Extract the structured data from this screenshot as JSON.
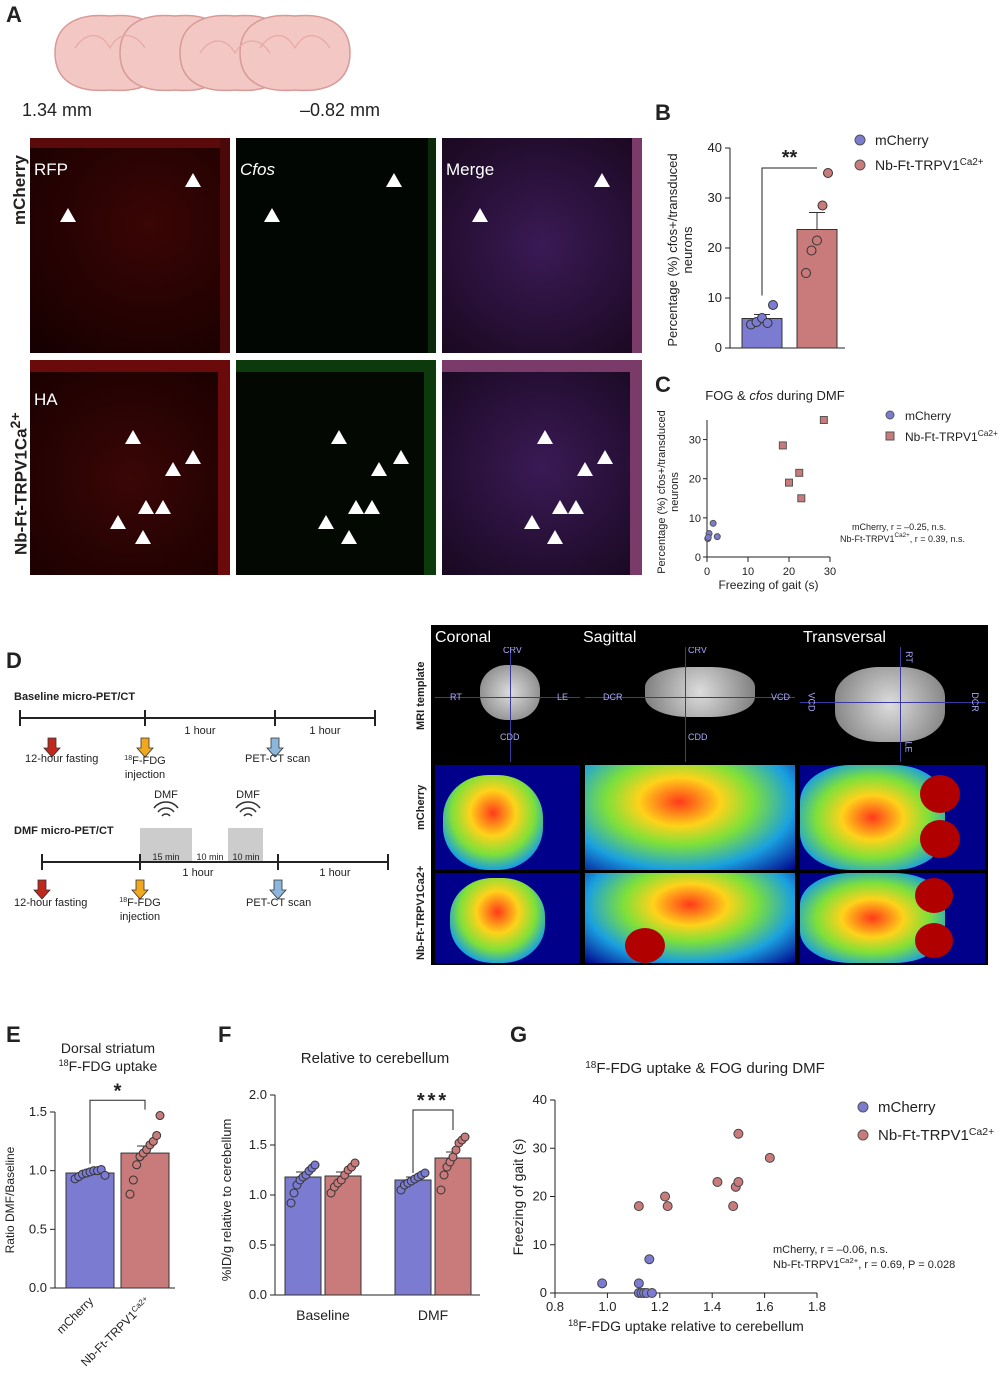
{
  "panel_labels": {
    "a": "A",
    "b": "B",
    "c": "C",
    "d": "D",
    "e": "E",
    "f": "F",
    "g": "G"
  },
  "panel_a": {
    "pos_left": "1.34 mm",
    "pos_right": "–0.82 mm",
    "row_labels": [
      "mCherry",
      "Nb-Ft-TRPV1Ca2+"
    ],
    "row_label_main": "Nb-Ft-TRPV1Ca",
    "row_label_sup": "2+",
    "col_labels": [
      "RFP",
      "Cfos",
      "Merge"
    ],
    "row2_first_label": "HA"
  },
  "legend": {
    "mcherry": "mCherry",
    "trpv1_main": "Nb-Ft-TRPV1",
    "trpv1_sup": "Ca2+",
    "color_mcherry": "#7b7bd1",
    "color_trpv1": "#c97b7b"
  },
  "panel_d": {
    "baseline_title": "Baseline micro-PET/CT",
    "dmf_title": "DMF micro-PET/CT",
    "fasting": "12-hour fasting",
    "injection_pre": "18",
    "injection_main": "F-FDG",
    "injection_line2": "injection",
    "scan": "PET-CT scan",
    "hour": "1 hour",
    "dmf": "DMF",
    "min15": "15 min",
    "min10": "10 min",
    "pet_cols": [
      "Coronal",
      "Sagittal",
      "Transversal"
    ],
    "pet_rows": [
      "MRI template",
      "mCherry",
      "Nb-Ft-TRPV1Ca2+"
    ],
    "orient": {
      "crv": "CRV",
      "cdd": "CDD",
      "rt": "RT",
      "le": "LE",
      "dcr": "DCR",
      "vcd": "VCD"
    }
  },
  "chart_data": [
    {
      "id": "B",
      "type": "bar",
      "categories": [
        "mCherry",
        "Nb-Ft-TRPV1Ca2+"
      ],
      "values": [
        5.9,
        23.7
      ],
      "errors": [
        0.8,
        3.4
      ],
      "points": [
        [
          4.7,
          5.2,
          6.0,
          5.0,
          8.6
        ],
        [
          15.0,
          19.5,
          21.5,
          28.5,
          35.0
        ]
      ],
      "ylabel": "Percentage (%) cfos+/transduced neurons",
      "ylabel_line1": "Percentage (%) cfos+/transduced",
      "ylabel_line2": "neurons",
      "ylim": [
        0,
        40
      ],
      "yticks": [
        "0",
        "10",
        "20",
        "30",
        "40"
      ],
      "significance": "**"
    },
    {
      "id": "C",
      "type": "scatter",
      "title": "FOG & cfos during DMF",
      "title_pre": "FOG & ",
      "title_it": "cfos",
      "title_post": " during DMF",
      "xlabel": "Freezing of gait (s)",
      "ylabel_line1": "Percentage (%) cfos+/transduced",
      "ylabel_line2": "neurons",
      "xlim": [
        0,
        30
      ],
      "ylim": [
        0,
        35
      ],
      "xticks": [
        "0",
        "10",
        "20",
        "30"
      ],
      "yticks": [
        "0",
        "10",
        "20",
        "30"
      ],
      "series": [
        {
          "name": "mCherry",
          "points": [
            [
              0.2,
              4.7
            ],
            [
              0.5,
              6.0
            ],
            [
              1.5,
              8.6
            ],
            [
              2.5,
              5.2
            ],
            [
              0.3,
              5.0
            ]
          ]
        },
        {
          "name": "Nb-Ft-TRPV1Ca2+",
          "points": [
            [
              18.5,
              28.5
            ],
            [
              20,
              19
            ],
            [
              22.5,
              21.5
            ],
            [
              23,
              15
            ],
            [
              28.5,
              35
            ]
          ]
        }
      ],
      "annot1": "mCherry, r = –0.25, n.s.",
      "annot2_pre": "Nb-Ft-TRPV1",
      "annot2_sup": "Ca2+",
      "annot2_post": ", r = 0.39, n.s."
    },
    {
      "id": "E",
      "type": "bar",
      "title_line1": "Dorsal striatum",
      "title_line2_sup": "18",
      "title_line2": "F-FDG uptake",
      "categories": [
        "mCherry",
        "Nb-Ft-TRPV1Ca2+"
      ],
      "values": [
        0.98,
        1.15
      ],
      "errors": [
        0.02,
        0.06
      ],
      "points": [
        [
          0.93,
          0.95,
          0.97,
          0.98,
          0.99,
          1.0,
          1.0,
          1.01,
          0.96
        ],
        [
          0.8,
          0.92,
          1.05,
          1.12,
          1.15,
          1.18,
          1.22,
          1.25,
          1.3,
          1.47
        ]
      ],
      "ylabel": "Ratio DMF/Baseline",
      "ylim": [
        0,
        1.5
      ],
      "yticks": [
        "0.0",
        "0.5",
        "1.0",
        "1.5"
      ],
      "significance": "*"
    },
    {
      "id": "F",
      "type": "bar",
      "title": "Relative to cerebellum",
      "categories": [
        "Baseline",
        "DMF"
      ],
      "series": [
        {
          "name": "mCherry",
          "values": [
            1.18,
            1.15
          ],
          "errors": [
            0.05,
            0.03
          ],
          "points": [
            [
              0.92,
              1.02,
              1.1,
              1.15,
              1.18,
              1.2,
              1.24,
              1.27,
              1.3
            ],
            [
              1.05,
              1.1,
              1.12,
              1.14,
              1.16,
              1.18,
              1.2,
              1.22
            ]
          ]
        },
        {
          "name": "Nb-Ft-TRPV1Ca2+",
          "values": [
            1.19,
            1.37
          ],
          "errors": [
            0.04,
            0.06
          ],
          "points": [
            [
              1.02,
              1.08,
              1.12,
              1.15,
              1.2,
              1.25,
              1.28,
              1.32
            ],
            [
              1.05,
              1.2,
              1.28,
              1.33,
              1.38,
              1.45,
              1.52,
              1.55,
              1.58
            ]
          ]
        }
      ],
      "ylabel": "%ID/g relative to cerebellum",
      "ylim": [
        0,
        2.0
      ],
      "yticks": [
        "0.0",
        "0.5",
        "1.0",
        "1.5",
        "2.0"
      ],
      "significance": "***"
    },
    {
      "id": "G",
      "type": "scatter",
      "title_sup": "18",
      "title": "F-FDG uptake & FOG during DMF",
      "xlabel_sup": "18",
      "xlabel": "F-FDG uptake relative to cerebellum",
      "ylabel": "Freezing of gait (s)",
      "xlim": [
        0.8,
        1.8
      ],
      "ylim": [
        0,
        40
      ],
      "xticks": [
        "0.8",
        "1.0",
        "1.2",
        "1.4",
        "1.6",
        "1.8"
      ],
      "yticks": [
        "0",
        "10",
        "20",
        "30",
        "40"
      ],
      "series": [
        {
          "name": "mCherry",
          "points": [
            [
              0.98,
              2
            ],
            [
              1.12,
              0
            ],
            [
              1.12,
              2
            ],
            [
              1.13,
              0
            ],
            [
              1.14,
              0
            ],
            [
              1.15,
              0
            ],
            [
              1.16,
              7
            ],
            [
              1.17,
              0
            ]
          ]
        },
        {
          "name": "Nb-Ft-TRPV1Ca2+",
          "points": [
            [
              1.12,
              18
            ],
            [
              1.22,
              20
            ],
            [
              1.23,
              18
            ],
            [
              1.42,
              23
            ],
            [
              1.48,
              18
            ],
            [
              1.49,
              22
            ],
            [
              1.5,
              23
            ],
            [
              1.5,
              33
            ],
            [
              1.62,
              28
            ]
          ]
        }
      ],
      "annot1": "mCherry, r = –0.06, n.s.",
      "annot2_pre": "Nb-Ft-TRPV1",
      "annot2_sup": "Ca2+",
      "annot2_post": ", r = 0.69, P = 0.028"
    }
  ]
}
